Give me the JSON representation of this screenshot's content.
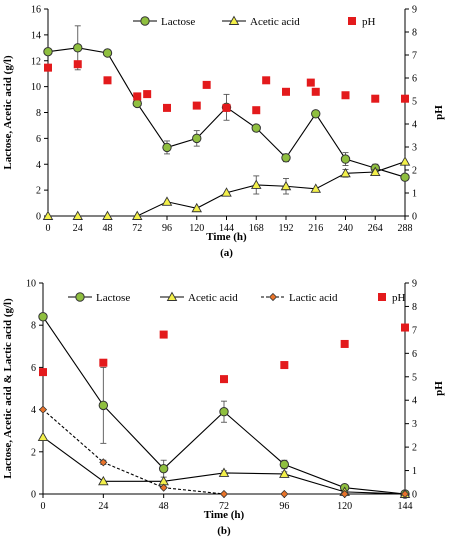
{
  "chart_data": [
    {
      "type": "line",
      "panel_label": "(a)",
      "xlabel": "Time (h)",
      "ylabel": "Lactose, Acetic acid (g/l)",
      "y2label": "pH",
      "xlim": [
        0,
        288
      ],
      "ylim": [
        0,
        16
      ],
      "y2lim": [
        0,
        9
      ],
      "xticks": [
        0,
        24,
        48,
        72,
        96,
        120,
        144,
        168,
        192,
        216,
        240,
        264,
        288
      ],
      "yticks": [
        0,
        2,
        4,
        6,
        8,
        10,
        12,
        14,
        16
      ],
      "y2ticks": [
        0,
        1,
        2,
        3,
        4,
        5,
        6,
        7,
        8,
        9
      ],
      "grid": false,
      "legend_position": "top",
      "series": [
        {
          "name": "Lactose",
          "axis": "left",
          "style": "circle-line",
          "color": "#000000",
          "marker_color": "#8fbf3f",
          "x": [
            0,
            24,
            48,
            72,
            96,
            120,
            144,
            168,
            192,
            216,
            240,
            264,
            288
          ],
          "y": [
            12.7,
            13.0,
            12.6,
            8.7,
            5.3,
            6.0,
            8.4,
            6.8,
            4.5,
            7.9,
            4.4,
            3.7,
            3.0
          ],
          "err": [
            0,
            1.7,
            0,
            0,
            0.5,
            0.6,
            1.0,
            0,
            0.3,
            0,
            0.5,
            0.3,
            0
          ]
        },
        {
          "name": "Acetic acid",
          "axis": "left",
          "style": "triangle-line",
          "color": "#000000",
          "marker_color": "#f3f04a",
          "x": [
            0,
            24,
            48,
            72,
            96,
            120,
            144,
            168,
            192,
            216,
            240,
            264,
            288
          ],
          "y": [
            0,
            0,
            0,
            0,
            1.1,
            0.6,
            1.8,
            2.4,
            2.3,
            2.1,
            3.3,
            3.4,
            4.2
          ],
          "err": [
            0,
            0,
            0,
            0,
            0,
            0,
            0,
            0.7,
            0.6,
            0,
            0.3,
            0.2,
            0
          ]
        },
        {
          "name": "pH",
          "axis": "right",
          "style": "square",
          "color": "#e31a1c",
          "x": [
            0,
            24,
            48,
            72,
            80,
            96,
            120,
            128,
            144,
            168,
            176,
            192,
            212,
            216,
            240,
            264,
            288
          ],
          "y": [
            6.45,
            6.6,
            5.9,
            5.2,
            5.3,
            4.7,
            4.8,
            5.7,
            4.7,
            4.6,
            5.9,
            5.4,
            5.8,
            5.4,
            5.25,
            5.1,
            5.1
          ]
        }
      ]
    },
    {
      "type": "line",
      "panel_label": "(b)",
      "xlabel": "Time (h)",
      "ylabel": "Lactose, Acetic acid & Lactic acid  (g/l)",
      "y2label": "pH",
      "xlim": [
        0,
        144
      ],
      "ylim": [
        0,
        10
      ],
      "y2lim": [
        0,
        9
      ],
      "xticks": [
        0,
        24,
        48,
        72,
        96,
        120,
        144
      ],
      "yticks": [
        0,
        2,
        4,
        6,
        8,
        10
      ],
      "y2ticks": [
        0,
        1,
        2,
        3,
        4,
        5,
        6,
        7,
        8,
        9
      ],
      "grid": false,
      "legend_position": "top",
      "series": [
        {
          "name": "Lactose",
          "axis": "left",
          "style": "circle-line",
          "color": "#000000",
          "marker_color": "#8fbf3f",
          "x": [
            0,
            24,
            48,
            72,
            96,
            120,
            144
          ],
          "y": [
            8.4,
            4.2,
            1.2,
            3.9,
            1.4,
            0.3,
            0.0
          ],
          "err": [
            0,
            1.8,
            0.4,
            0.5,
            0.2,
            0,
            0
          ]
        },
        {
          "name": "Acetic acid",
          "axis": "left",
          "style": "triangle-line",
          "color": "#000000",
          "marker_color": "#f3f04a",
          "x": [
            0,
            24,
            48,
            72,
            96,
            120,
            144
          ],
          "y": [
            2.7,
            0.6,
            0.6,
            1.0,
            0.95,
            0.1,
            0.0
          ],
          "err": [
            0,
            0,
            0,
            0.1,
            0.1,
            0,
            0
          ]
        },
        {
          "name": "Lactic acid",
          "axis": "left",
          "style": "diamond-dashed",
          "color": "#000000",
          "marker_color": "#e8732a",
          "x": [
            0,
            24,
            48,
            72,
            96,
            120,
            144
          ],
          "y": [
            4.0,
            1.5,
            0.3,
            0.0,
            0.0,
            0.0,
            0.0
          ],
          "err": [
            0,
            0.1,
            0,
            0,
            0,
            0,
            0
          ]
        },
        {
          "name": "pH",
          "axis": "right",
          "style": "square",
          "color": "#e31a1c",
          "x": [
            0,
            24,
            48,
            72,
            96,
            120,
            144
          ],
          "y": [
            5.2,
            5.6,
            6.8,
            4.9,
            5.5,
            6.4,
            7.1
          ]
        }
      ]
    }
  ]
}
